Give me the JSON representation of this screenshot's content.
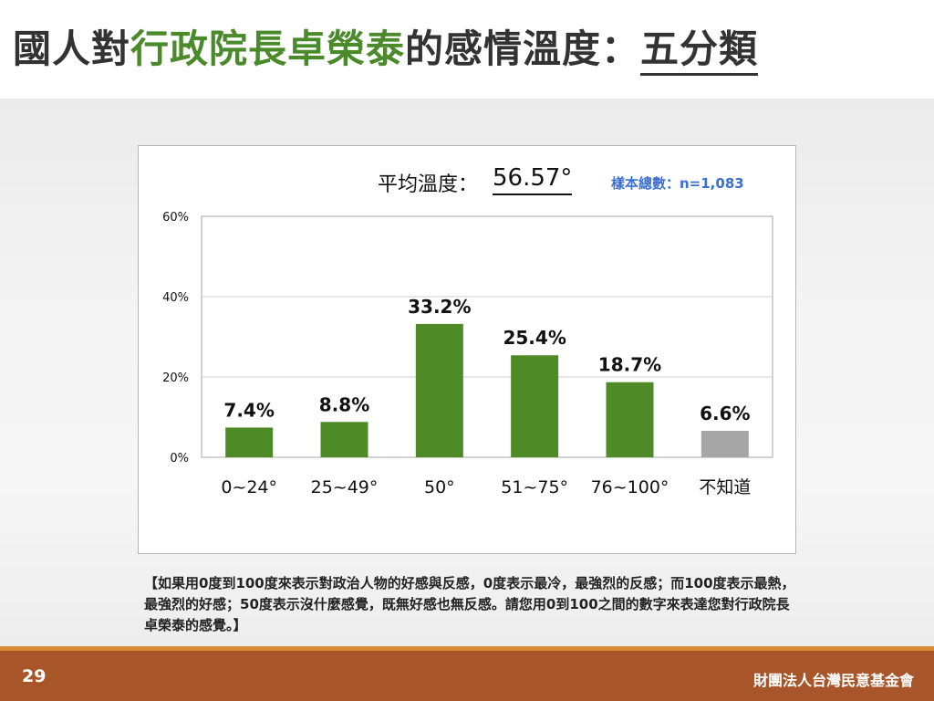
{
  "title": {
    "prefix": "國人對",
    "highlight": "行政院長卓榮泰",
    "middle": "的感情溫度：",
    "suffix": "五分類"
  },
  "average": {
    "label": "平均溫度：",
    "value": "56.57°"
  },
  "sample_size": "樣本總數：n=1,083",
  "chart_data": {
    "type": "bar",
    "categories": [
      "0~24°",
      "25~49°",
      "50°",
      "51~75°",
      "76~100°",
      "不知道"
    ],
    "values": [
      7.4,
      8.8,
      33.2,
      25.4,
      18.7,
      6.6
    ],
    "data_labels": [
      "7.4%",
      "8.8%",
      "33.2%",
      "25.4%",
      "18.7%",
      "6.6%"
    ],
    "colors": [
      "#4e8a26",
      "#4e8a26",
      "#4e8a26",
      "#4e8a26",
      "#4e8a26",
      "#a6a6a6"
    ],
    "y_ticks": [
      "0%",
      "20%",
      "40%",
      "60%"
    ],
    "ylim": [
      0,
      60
    ],
    "grid": true
  },
  "note": "【如果用0度到100度來表示對政治人物的好感與反感，0度表示最冷，最強烈的反感；而100度表示最熱，最強烈的好感；50度表示沒什麼感覺，既無好感也無反感。請您用0到100之間的數字來表達您對行政院長卓榮泰的感覺。】",
  "footer": {
    "page_number": "29",
    "organization": "財團法人台灣民意基金會"
  }
}
